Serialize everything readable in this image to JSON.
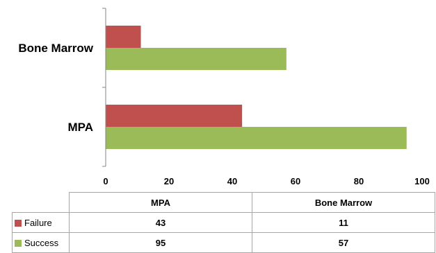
{
  "chart_data": {
    "type": "bar",
    "orientation": "horizontal",
    "categories": [
      "MPA",
      "Bone Marrow"
    ],
    "series": [
      {
        "name": "Failure",
        "values": [
          43,
          11
        ],
        "color": "#C0504D"
      },
      {
        "name": "Success",
        "values": [
          95,
          57
        ],
        "color": "#9BBB59"
      }
    ],
    "xlim": [
      0,
      100
    ],
    "xticks": [
      "0",
      "20",
      "40",
      "60",
      "80",
      "100"
    ],
    "grid": false,
    "legend": "data-table"
  }
}
